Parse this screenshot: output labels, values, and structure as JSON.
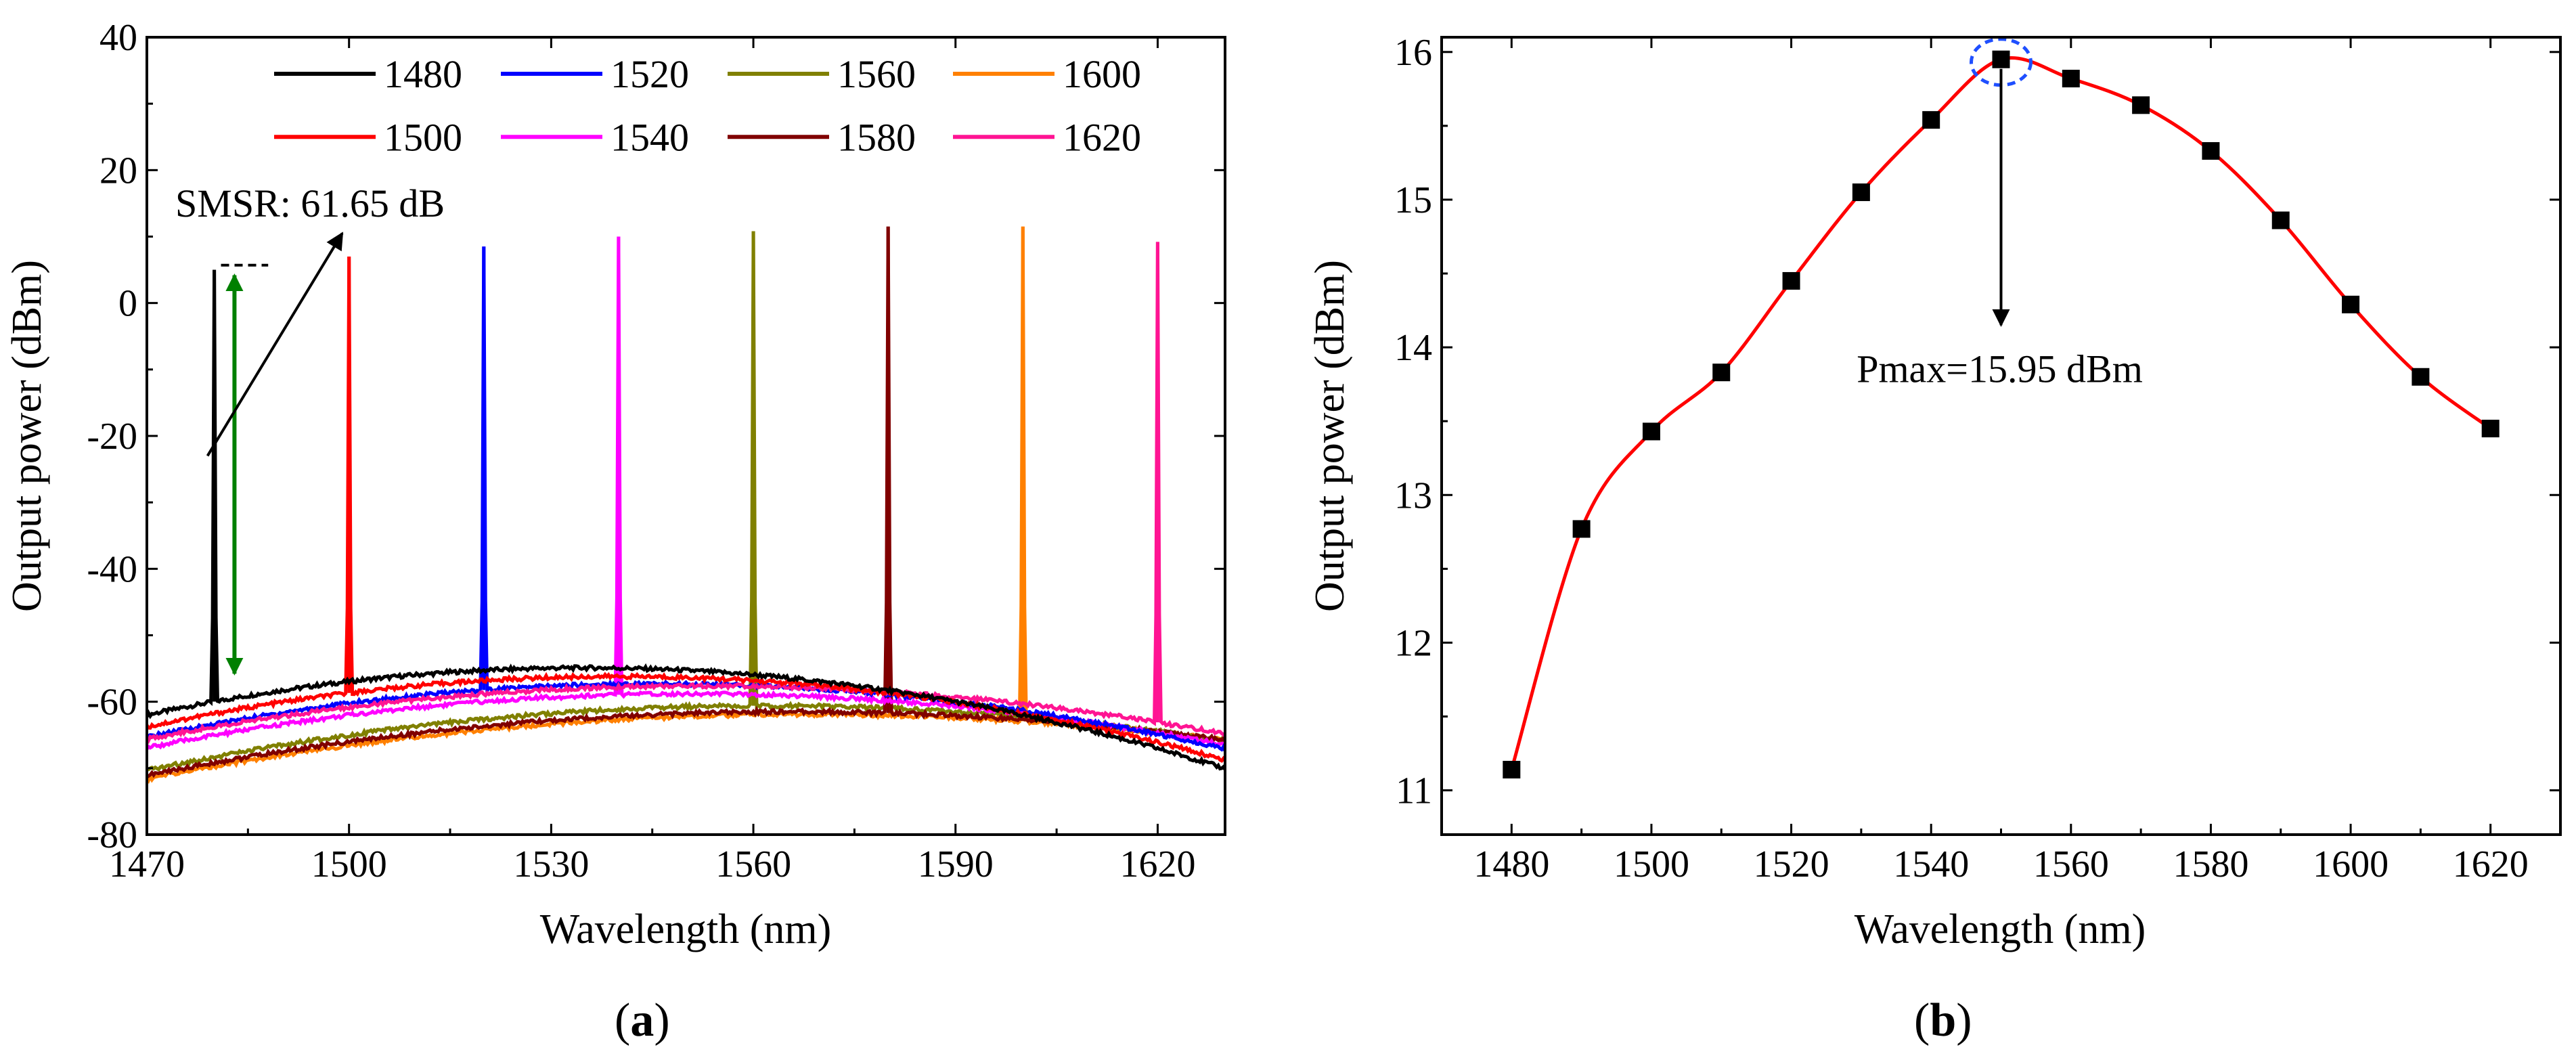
{
  "chart_data": [
    {
      "id": "a",
      "type": "line",
      "panel_label": "(a)",
      "panel_letter": "a",
      "xlabel": "Wavelength (nm)",
      "ylabel": "Output power (dBm)",
      "xlim": [
        1470,
        1630
      ],
      "ylim": [
        -80,
        40
      ],
      "xticks": [
        1470,
        1500,
        1530,
        1560,
        1590,
        1620
      ],
      "yticks": [
        -80,
        -60,
        -40,
        -20,
        0,
        20,
        40
      ],
      "legend_position": "top",
      "series": [
        {
          "name": "1480",
          "color": "#000000",
          "peak_wavelength": 1480,
          "peak_power": 5.0,
          "floor_level": -54.9,
          "floor_center": 1535,
          "floor_curvature": 0.00168
        },
        {
          "name": "1500",
          "color": "#ff0000",
          "peak_wavelength": 1500,
          "peak_power": 7.0,
          "floor_level": -56.2,
          "floor_center": 1540,
          "floor_curvature": 0.00155
        },
        {
          "name": "1520",
          "color": "#0000ff",
          "peak_wavelength": 1520,
          "peak_power": 8.5,
          "floor_level": -57.3,
          "floor_center": 1546,
          "floor_curvature": 0.00139
        },
        {
          "name": "1540",
          "color": "#ff00ff",
          "peak_wavelength": 1540,
          "peak_power": 10.0,
          "floor_level": -58.8,
          "floor_center": 1551,
          "floor_curvature": 0.00124
        },
        {
          "name": "1560",
          "color": "#808000",
          "peak_wavelength": 1560,
          "peak_power": 10.8,
          "floor_level": -60.6,
          "floor_center": 1562,
          "floor_curvature": 0.00115
        },
        {
          "name": "1580",
          "color": "#800000",
          "peak_wavelength": 1580,
          "peak_power": 11.5,
          "floor_level": -61.5,
          "floor_center": 1566,
          "floor_curvature": 0.00104
        },
        {
          "name": "1600",
          "color": "#ff8000",
          "peak_wavelength": 1600,
          "peak_power": 11.5,
          "floor_level": -61.9,
          "floor_center": 1568,
          "floor_curvature": 0.00101
        },
        {
          "name": "1620",
          "color": "#ff1493",
          "peak_wavelength": 1620,
          "peak_power": 9.2,
          "floor_level": -57.6,
          "floor_center": 1552,
          "floor_curvature": 0.00119
        }
      ],
      "annotations": {
        "smsr_text": "SMSR: 61.65 dB",
        "smsr_value": 61.65,
        "smsr_arrow_x": 1483,
        "smsr_arrow_top": 5.0,
        "smsr_arrow_bottom": -56.6,
        "pointer_from": [
          1479,
          -23
        ],
        "pointer_to": [
          1499,
          10.5
        ],
        "dashed_ref": {
          "x_start": 1481,
          "x_end": 1488,
          "y": 5.7
        }
      }
    },
    {
      "id": "b",
      "type": "line",
      "panel_label": "(b)",
      "panel_letter": "b",
      "xlabel": "Wavelength (nm)",
      "ylabel": "Output power (dBm)",
      "xlim": [
        1470,
        1630
      ],
      "ylim": [
        10.7,
        16.1
      ],
      "xticks": [
        1480,
        1500,
        1520,
        1540,
        1560,
        1580,
        1600,
        1620
      ],
      "yticks": [
        11,
        12,
        13,
        14,
        15,
        16
      ],
      "series": [
        {
          "name": "Output power",
          "line_color": "#ff0000",
          "marker_color": "#000000",
          "x": [
            1480,
            1490,
            1500,
            1510,
            1520,
            1530,
            1540,
            1550,
            1560,
            1570,
            1580,
            1590,
            1600,
            1610,
            1620
          ],
          "y": [
            11.14,
            12.77,
            13.43,
            13.83,
            14.45,
            15.05,
            15.54,
            15.95,
            15.82,
            15.64,
            15.33,
            14.86,
            14.29,
            13.8,
            13.45
          ]
        }
      ],
      "annotations": {
        "pmax_text": "Pmax=15.95 dBm",
        "pmax_wavelength": 1550,
        "pmax_value": 15.95,
        "arrow_end_value": 14.15
      }
    }
  ]
}
